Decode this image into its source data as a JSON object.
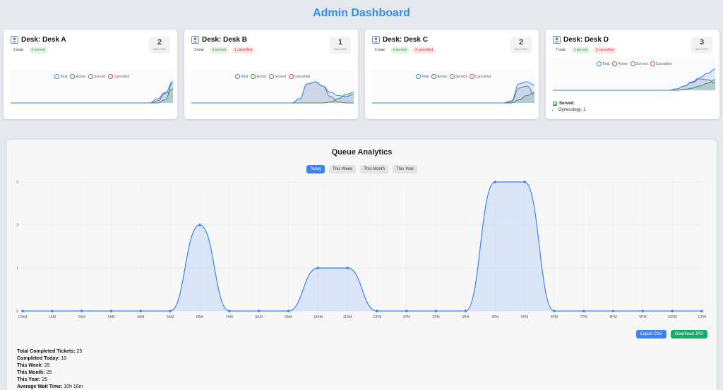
{
  "header": {
    "title": "Admin Dashboard"
  },
  "desks": [
    {
      "name": "Desk: Desk A",
      "total": "2 total",
      "badges": [
        {
          "type": "served",
          "text": "0 served"
        }
      ],
      "waiting": "2",
      "waiting_label": "WAITING",
      "legend": [
        "Total",
        "Active",
        "Served",
        "Cancelled"
      ],
      "series": {
        "total": [
          0,
          0,
          0,
          0,
          0,
          0,
          0,
          0,
          0,
          0,
          0,
          0,
          0,
          0,
          0,
          0,
          0,
          0,
          0,
          0.4,
          1,
          2
        ],
        "active": [
          0,
          0,
          0,
          0,
          0,
          0,
          0,
          0,
          0,
          0,
          0,
          0,
          0,
          0,
          0,
          0,
          0,
          0,
          0,
          0.2,
          0.9,
          1.3
        ],
        "cancelled": [
          0,
          0,
          0,
          0,
          0,
          0,
          0,
          0,
          0,
          0,
          0,
          0,
          0,
          0,
          0,
          0,
          0,
          0,
          0,
          0,
          0.3,
          2
        ]
      }
    },
    {
      "name": "Desk: Desk B",
      "total": "2 total",
      "badges": [
        {
          "type": "served",
          "text": "0 served"
        },
        {
          "type": "cancel",
          "text": "1 cancelled"
        }
      ],
      "waiting": "1",
      "waiting_label": "WAITING",
      "legend": [
        "Total",
        "Active",
        "Served",
        "Cancelled"
      ],
      "series": {
        "total": [
          0,
          0,
          0,
          0,
          0,
          0,
          0,
          0,
          0,
          0,
          0,
          0,
          0,
          0,
          0.4,
          1.8,
          2,
          1.6,
          1,
          0.7,
          0.6,
          0.8
        ],
        "active": [
          0,
          0,
          0,
          0,
          0,
          0,
          0,
          0,
          0,
          0,
          0,
          0,
          0,
          0,
          0.4,
          1.8,
          2,
          1.6,
          0.6,
          0.1,
          0,
          0
        ],
        "cancelled": [
          0,
          0,
          0,
          0,
          0,
          0,
          0,
          0,
          0,
          0,
          0,
          0,
          0,
          0,
          0,
          0,
          0,
          0,
          0.1,
          0.4,
          0.8,
          1
        ]
      }
    },
    {
      "name": "Desk: Desk C",
      "total": "6 total",
      "badges": [
        {
          "type": "served",
          "text": "0 served"
        },
        {
          "type": "cancel",
          "text": "4 cancelled"
        }
      ],
      "waiting": "2",
      "waiting_label": "WAITING",
      "legend": [
        "Total",
        "Active",
        "Served",
        "Cancelled"
      ],
      "series": {
        "total": [
          0,
          0,
          0,
          0,
          0,
          0,
          0,
          0,
          0,
          0,
          0,
          0,
          0,
          0,
          0,
          0,
          0,
          0,
          0.2,
          1.8,
          2,
          1.7
        ],
        "active": [
          0,
          0,
          0,
          0,
          0,
          0,
          0,
          0,
          0,
          0,
          0,
          0,
          0,
          0,
          0,
          0,
          0,
          0,
          0.1,
          1.4,
          1.6,
          0.8
        ],
        "cancelled": [
          0,
          0,
          0,
          0,
          0,
          0,
          0,
          0,
          0,
          0,
          0,
          0,
          0,
          0,
          0,
          0,
          0,
          0,
          0,
          0.3,
          0.7,
          1
        ]
      }
    },
    {
      "name": "Desk: Desk D",
      "total": "7 total",
      "badges": [
        {
          "type": "served",
          "text": "1 served"
        },
        {
          "type": "cancel",
          "text": "3 cancelled"
        }
      ],
      "waiting": "3",
      "waiting_label": "WAITING",
      "legend": [
        "Total",
        "Active",
        "Served",
        "Cancelled"
      ],
      "series": {
        "total": [
          0,
          0,
          0,
          0,
          0,
          0,
          0,
          0,
          0,
          0,
          0,
          0,
          0,
          0,
          0,
          0,
          0.2,
          0.6,
          1.2,
          1.8,
          2.4,
          3
        ],
        "active": [
          0,
          0,
          0,
          0,
          0,
          0,
          0,
          0,
          0,
          0,
          0,
          0,
          0,
          0,
          0,
          0,
          0.2,
          0.6,
          1.1,
          1.6,
          1.5,
          1
        ],
        "cancelled": [
          0,
          0,
          0,
          0,
          0,
          0,
          0,
          0,
          0,
          0,
          0,
          0,
          0,
          0,
          0,
          0,
          0,
          0.1,
          0.3,
          0.6,
          1,
          1.5
        ]
      },
      "served_title": "Served:",
      "served_items": [
        "Gynecology: 1"
      ]
    }
  ],
  "colors": {
    "total": "#3b82f6",
    "active": "#2e9b46",
    "served": "#777777",
    "cancelled": "#e04848"
  },
  "analytics": {
    "title": "Queue Analytics",
    "ranges": [
      "Today",
      "This Week",
      "This Month",
      "This Year"
    ],
    "active_range": "Today",
    "export_csv": "Export CSV",
    "download_jpg": "Download JPG",
    "stats": [
      {
        "label": "Total Completed Tickets:",
        "value": "25"
      },
      {
        "label": "Completed Today:",
        "value": "10"
      },
      {
        "label": "This Week:",
        "value": "25"
      },
      {
        "label": "This Month:",
        "value": "25"
      },
      {
        "label": "This Year:",
        "value": "25"
      },
      {
        "label": "Average Wait Time:",
        "value": "10h 16m"
      }
    ]
  },
  "chart_data": {
    "type": "area",
    "x": [
      "12AM",
      "1AM",
      "2AM",
      "3AM",
      "4AM",
      "5AM",
      "6AM",
      "7AM",
      "8AM",
      "9AM",
      "10AM",
      "11AM",
      "12PM",
      "1PM",
      "2PM",
      "3PM",
      "4PM",
      "5PM",
      "6PM",
      "7PM",
      "8PM",
      "9PM",
      "10PM",
      "11PM"
    ],
    "values": [
      0,
      0,
      0,
      0,
      0,
      0,
      2,
      0,
      0,
      0,
      1,
      1,
      0,
      0,
      0,
      0,
      3,
      3,
      0,
      0,
      0,
      0,
      0,
      0
    ],
    "ylim": [
      0,
      3
    ],
    "yticks": [
      0,
      1,
      2,
      3
    ],
    "grid": true
  }
}
